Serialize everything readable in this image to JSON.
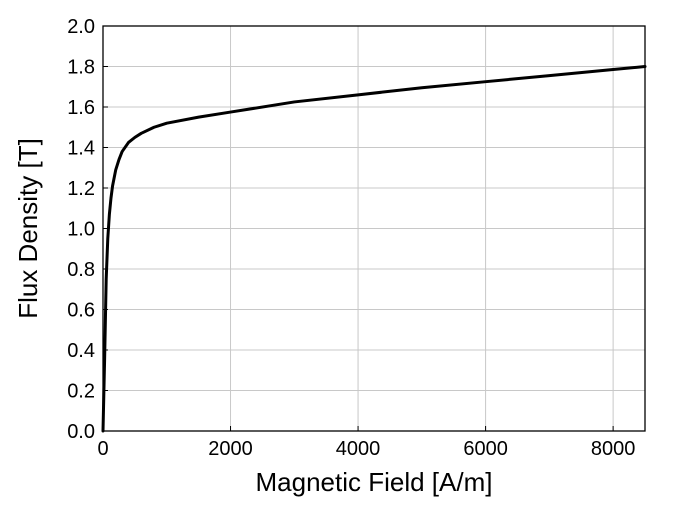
{
  "chart_data": {
    "type": "line",
    "title": "",
    "xlabel": "Magnetic Field [A/m]",
    "ylabel": "Flux Density [T]",
    "xlim": [
      0,
      8500
    ],
    "ylim": [
      0,
      2.0
    ],
    "x_ticks": [
      0,
      2000,
      4000,
      6000,
      8000
    ],
    "x_tick_labels": [
      "0",
      "2000",
      "4000",
      "6000",
      "8000"
    ],
    "y_ticks": [
      0,
      0.2,
      0.4,
      0.6,
      0.8,
      1.0,
      1.2,
      1.4,
      1.6,
      1.8,
      2.0
    ],
    "y_tick_labels": [
      "0.0",
      "0.2",
      "0.4",
      "0.6",
      "0.8",
      "1.0",
      "1.2",
      "1.4",
      "1.6",
      "1.8",
      "2.0"
    ],
    "grid": true,
    "legend": "none",
    "line_color": "#000000",
    "grid_color": "#c8c8c8",
    "series": [
      {
        "x": [
          0,
          25,
          50,
          75,
          100,
          125,
          150,
          200,
          250,
          300,
          400,
          500,
          600,
          800,
          1000,
          1500,
          2000,
          3000,
          4000,
          5000,
          6000,
          7000,
          8000,
          8500
        ],
        "y": [
          0.0,
          0.35,
          0.75,
          0.95,
          1.07,
          1.15,
          1.21,
          1.29,
          1.34,
          1.38,
          1.425,
          1.45,
          1.47,
          1.5,
          1.52,
          1.55,
          1.575,
          1.625,
          1.66,
          1.695,
          1.725,
          1.755,
          1.785,
          1.8
        ]
      }
    ]
  }
}
